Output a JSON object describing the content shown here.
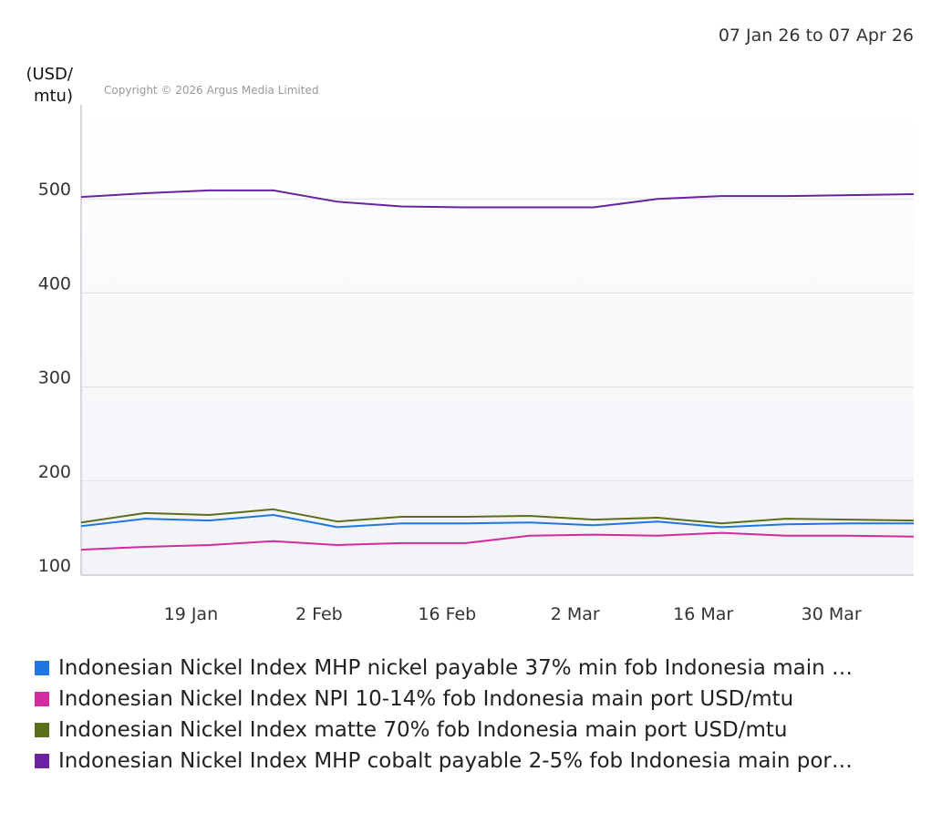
{
  "header": {
    "date_range": "07 Jan 26 to 07 Apr 26",
    "unit_line1": "(USD/",
    "unit_line2": "mtu)",
    "copyright": "Copyright © 2026 Argus Media Limited"
  },
  "chart_data": {
    "type": "line",
    "x": [
      "7 Jan",
      "14 Jan",
      "21 Jan",
      "28 Jan",
      "4 Feb",
      "11 Feb",
      "18 Feb",
      "25 Feb",
      "4 Mar",
      "11 Mar",
      "18 Mar",
      "25 Mar",
      "1 Apr",
      "7 Apr"
    ],
    "x_tick_labels": [
      "19 Jan",
      "2 Feb",
      "16 Feb",
      "2 Mar",
      "16 Mar",
      "30 Mar"
    ],
    "y_tick_labels": [
      "100",
      "200",
      "300",
      "400",
      "500"
    ],
    "ylim": [
      100,
      600
    ],
    "grid": true,
    "legend_position": "bottom",
    "series": [
      {
        "name": "Indonesian Nickel Index MHP nickel payable 37% min fob Indonesia main …",
        "color": "#1f77e0",
        "values": [
          152,
          160,
          158,
          164,
          151,
          155,
          155,
          156,
          153,
          157,
          151,
          154,
          155,
          155
        ]
      },
      {
        "name": "Indonesian Nickel Index NPI 10-14% fob Indonesia main port USD/mtu",
        "color": "#d22ca0",
        "values": [
          127,
          130,
          132,
          136,
          132,
          134,
          134,
          142,
          143,
          142,
          145,
          142,
          142,
          141
        ]
      },
      {
        "name": "Indonesian Nickel Index matte 70% fob Indonesia main port USD/mtu",
        "color": "#5c6e1a",
        "values": [
          156,
          166,
          164,
          170,
          157,
          162,
          162,
          163,
          159,
          161,
          155,
          160,
          159,
          158
        ]
      },
      {
        "name": "Indonesian Nickel Index MHP cobalt payable 2-5% fob Indonesia main por…",
        "color": "#6a22a0",
        "values": [
          502,
          506,
          509,
          509,
          497,
          492,
          491,
          491,
          491,
          500,
          503,
          503,
          504,
          505
        ]
      }
    ]
  }
}
